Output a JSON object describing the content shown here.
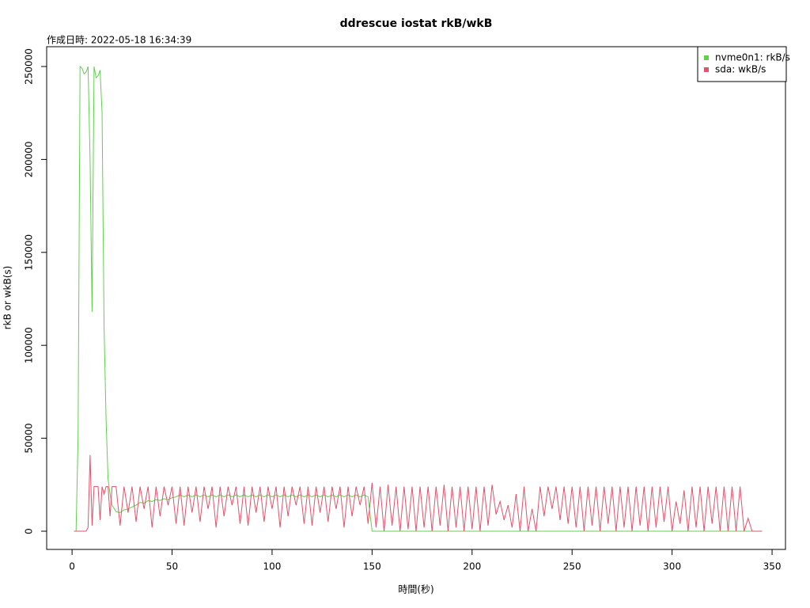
{
  "chart_data": {
    "type": "line",
    "title": "ddrescue iostat rkB/wkB",
    "subtitle": "作成日時: 2022-05-18 16:34:39",
    "x_label": "時間(秒)",
    "y_label": "rkB or wkB(s)",
    "xlim": [
      -12.7,
      356.7
    ],
    "ylim": [
      -9800,
      260650
    ],
    "xticks": [
      0,
      50,
      100,
      150,
      200,
      250,
      300,
      350
    ],
    "yticks": [
      0,
      50000,
      100000,
      150000,
      200000,
      250000
    ],
    "legend": "topright",
    "x": [
      1,
      2,
      3,
      4,
      5,
      6,
      7,
      8,
      9,
      10,
      11,
      12,
      13,
      14,
      15,
      16,
      17,
      18,
      19,
      20,
      22,
      24,
      26,
      28,
      30,
      32,
      34,
      36,
      38,
      40,
      42,
      44,
      46,
      48,
      50,
      52,
      54,
      56,
      58,
      60,
      62,
      64,
      66,
      68,
      70,
      72,
      74,
      76,
      78,
      80,
      82,
      84,
      86,
      88,
      90,
      92,
      94,
      96,
      98,
      100,
      102,
      104,
      106,
      108,
      110,
      112,
      114,
      116,
      118,
      120,
      122,
      124,
      126,
      128,
      130,
      132,
      134,
      136,
      138,
      140,
      142,
      144,
      146,
      148,
      150,
      152,
      154,
      156,
      158,
      160,
      162,
      164,
      166,
      168,
      170,
      172,
      174,
      176,
      178,
      180,
      182,
      184,
      186,
      188,
      190,
      192,
      194,
      196,
      198,
      200,
      202,
      204,
      206,
      208,
      210,
      212,
      214,
      216,
      218,
      220,
      222,
      224,
      226,
      228,
      230,
      232,
      234,
      236,
      238,
      240,
      242,
      244,
      246,
      248,
      250,
      252,
      254,
      256,
      258,
      260,
      262,
      264,
      266,
      268,
      270,
      272,
      274,
      276,
      278,
      280,
      282,
      284,
      286,
      288,
      290,
      292,
      294,
      296,
      298,
      300,
      302,
      304,
      306,
      308,
      310,
      312,
      314,
      316,
      318,
      320,
      322,
      324,
      326,
      328,
      330,
      332,
      334,
      336,
      338,
      340,
      342,
      344,
      345
    ],
    "series": [
      {
        "name": "nvme0n1: rkB/s",
        "color": "#61D04F",
        "values": [
          0,
          0,
          50000,
          250000,
          249000,
          246000,
          247000,
          250000,
          200000,
          118000,
          250000,
          244000,
          245000,
          248000,
          225000,
          110000,
          60000,
          28000,
          20000,
          14000,
          10500,
          10000,
          11500,
          12000,
          13000,
          14000,
          15500,
          15000,
          16500,
          16000,
          17000,
          16500,
          17500,
          17000,
          18000,
          18500,
          19500,
          18500,
          19500,
          18500,
          19500,
          18500,
          19500,
          18500,
          19500,
          18500,
          19500,
          18500,
          19500,
          18500,
          19500,
          18500,
          19500,
          18500,
          19500,
          18500,
          19500,
          18500,
          19500,
          18500,
          19500,
          18500,
          19500,
          18500,
          19500,
          18500,
          19500,
          18500,
          19500,
          18500,
          19500,
          18500,
          19500,
          18500,
          19500,
          18500,
          19500,
          18500,
          19500,
          18500,
          19500,
          18500,
          19500,
          18500,
          0,
          0,
          0,
          0,
          0,
          0,
          0,
          0,
          0,
          0,
          0,
          0,
          0,
          0,
          0,
          0,
          0,
          0,
          0,
          0,
          0,
          0,
          0,
          0,
          0,
          0,
          0,
          0,
          0,
          0,
          0,
          0,
          0,
          0,
          0,
          0,
          0,
          0,
          0,
          0,
          0,
          0,
          0,
          0,
          0,
          0,
          0,
          0,
          0,
          0,
          0,
          0,
          0,
          0,
          0,
          0,
          0,
          0,
          0,
          0,
          0,
          0,
          0,
          0,
          0,
          0,
          0,
          0,
          0,
          0,
          0,
          0,
          0,
          0,
          0,
          0,
          0,
          0,
          0,
          0,
          0,
          0,
          0,
          0,
          0,
          0,
          0,
          0,
          0,
          0,
          0,
          0,
          0,
          0,
          0,
          0,
          0,
          0,
          0
        ]
      },
      {
        "name": "sda: wkB/s",
        "color": "#DF536B",
        "values": [
          0,
          0,
          0,
          0,
          0,
          0,
          0,
          2000,
          41000,
          3000,
          24000,
          24000,
          24000,
          6000,
          24000,
          20000,
          24000,
          24000,
          8000,
          24000,
          24000,
          3000,
          24000,
          10000,
          24000,
          5000,
          24000,
          12000,
          24000,
          2000,
          24000,
          8000,
          24000,
          14000,
          24000,
          4000,
          24000,
          3000,
          24000,
          10000,
          24000,
          5000,
          24000,
          12000,
          24000,
          2000,
          24000,
          8000,
          24000,
          14000,
          24000,
          4000,
          24000,
          3000,
          24000,
          10000,
          24000,
          5000,
          24000,
          12000,
          24000,
          2000,
          24000,
          8000,
          24000,
          14000,
          24000,
          4000,
          24000,
          3000,
          24000,
          10000,
          24000,
          5000,
          24000,
          12000,
          24000,
          2000,
          24000,
          8000,
          24000,
          14000,
          24000,
          4000,
          26000,
          2000,
          24000,
          0,
          25000,
          3000,
          24000,
          0,
          24000,
          1000,
          24000,
          0,
          24000,
          2000,
          24000,
          0,
          24000,
          3000,
          25000,
          0,
          24000,
          2000,
          24000,
          0,
          24000,
          1000,
          24000,
          0,
          24000,
          3000,
          25000,
          9000,
          16000,
          6000,
          14000,
          2000,
          20000,
          0,
          24000,
          0,
          12000,
          0,
          24000,
          8000,
          24000,
          12000,
          24000,
          6000,
          24000,
          4000,
          24000,
          2000,
          24000,
          0,
          24000,
          3000,
          24000,
          0,
          24000,
          4000,
          24000,
          0,
          24000,
          2000,
          24000,
          0,
          24000,
          3000,
          24000,
          0,
          24000,
          2000,
          24000,
          5000,
          24000,
          0,
          16000,
          4000,
          22000,
          0,
          24000,
          2000,
          24000,
          0,
          24000,
          4000,
          24000,
          0,
          24000,
          0,
          24000,
          0,
          24000,
          0,
          7000,
          0,
          0,
          0,
          0
        ]
      }
    ]
  }
}
